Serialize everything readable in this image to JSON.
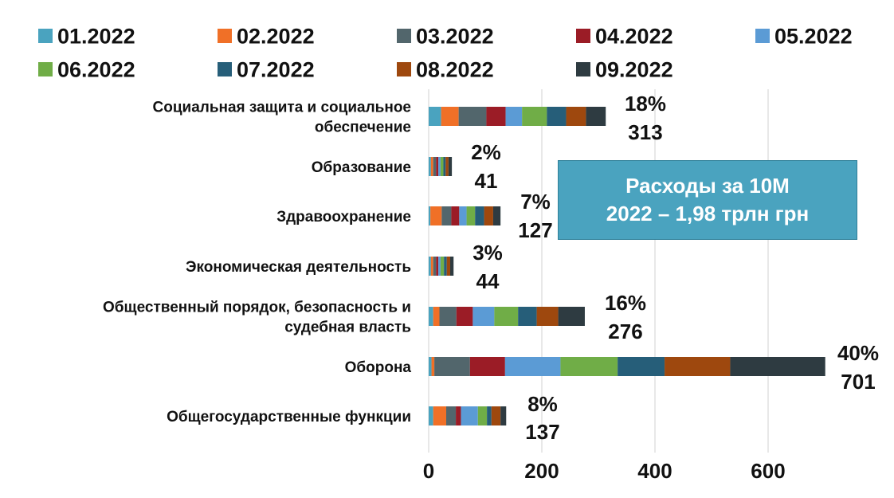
{
  "chart_data": {
    "type": "bar",
    "orientation": "horizontal",
    "stacked": true,
    "legend_position": "top",
    "grid": true,
    "xlim": [
      0,
      750
    ],
    "x_ticks": [
      "0",
      "200",
      "400",
      "600"
    ],
    "x_tick_values": [
      0,
      200,
      400,
      600
    ],
    "categories": [
      [
        "Социальная защита и социальное",
        "обеспечение"
      ],
      [
        "Образование"
      ],
      [
        "Здравоохранение"
      ],
      [
        "Экономическая деятельность"
      ],
      [
        "Общественный порядок, безопасность и",
        "судебная власть"
      ],
      [
        "Оборона"
      ],
      [
        "Общегосударственные функции"
      ]
    ],
    "series": [
      {
        "name": "01.2022",
        "color": "#4aa3bf",
        "values": [
          22,
          4,
          3,
          4,
          8,
          5,
          8
        ]
      },
      {
        "name": "02.2022",
        "color": "#f07027",
        "values": [
          31,
          4,
          20,
          4,
          11,
          5,
          23
        ]
      },
      {
        "name": "03.2022",
        "color": "#52666c",
        "values": [
          49,
          5,
          17,
          5,
          30,
          63,
          17
        ]
      },
      {
        "name": "04.2022",
        "color": "#9b1c26",
        "values": [
          34,
          4,
          14,
          4,
          29,
          62,
          9
        ]
      },
      {
        "name": "05.2022",
        "color": "#5b9bd5",
        "values": [
          29,
          4,
          13,
          4,
          38,
          98,
          30
        ]
      },
      {
        "name": "06.2022",
        "color": "#70ad47",
        "values": [
          44,
          5,
          15,
          6,
          42,
          101,
          16
        ]
      },
      {
        "name": "07.2022",
        "color": "#265e79",
        "values": [
          34,
          4,
          16,
          5,
          33,
          83,
          8
        ]
      },
      {
        "name": "08.2022",
        "color": "#9e480e",
        "values": [
          35,
          5,
          16,
          6,
          38,
          116,
          16
        ]
      },
      {
        "name": "09.2022",
        "color": "#2e3b41",
        "values": [
          35,
          6,
          13,
          6,
          47,
          168,
          10
        ]
      }
    ],
    "percent_labels": [
      "18%",
      "2%",
      "7%",
      "3%",
      "16%",
      "40%",
      "8%"
    ],
    "total_labels": [
      "313",
      "41",
      "127",
      "44",
      "276",
      "701",
      "137"
    ],
    "annotation": [
      "Расходы за 10М",
      "2022 – 1,98 трлн грн"
    ]
  }
}
